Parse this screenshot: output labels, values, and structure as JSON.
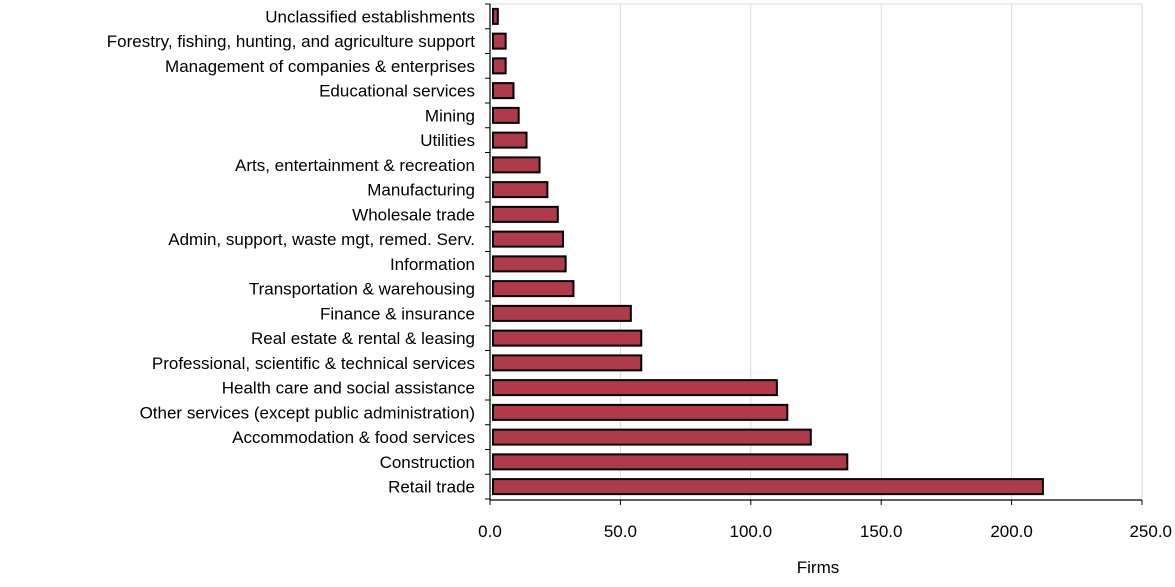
{
  "chart_data": {
    "type": "bar",
    "orientation": "horizontal",
    "title": "",
    "xlabel": "Firms",
    "ylabel": "",
    "xlim": [
      0,
      250
    ],
    "x_ticks": [
      0,
      50,
      100,
      150,
      200,
      250
    ],
    "x_tick_labels": [
      "0.0",
      "50.0",
      "100.0",
      "150.0",
      "200.0",
      "250.0"
    ],
    "grid": "vertical gridlines",
    "legend": "none",
    "bar_color": "#b0394a",
    "bar_edge_color": "#000000",
    "categories": [
      "Unclassified establishments",
      "Forestry, fishing, hunting, and agriculture support",
      "Management of companies & enterprises",
      "Educational services",
      "Mining",
      "Utilities",
      "Arts, entertainment & recreation",
      "Manufacturing",
      "Wholesale trade",
      "Admin, support, waste mgt, remed. Serv.",
      "Information",
      "Transportation & warehousing",
      "Finance & insurance",
      "Real estate & rental & leasing",
      "Professional, scientific & technical services",
      "Health care and social assistance",
      "Other services (except public administration)",
      "Accommodation & food services",
      "Construction",
      "Retail trade"
    ],
    "values": [
      3,
      6,
      6,
      9,
      11,
      14,
      19,
      22,
      26,
      28,
      29,
      32,
      54,
      58,
      58,
      110,
      114,
      123,
      137,
      212
    ]
  }
}
